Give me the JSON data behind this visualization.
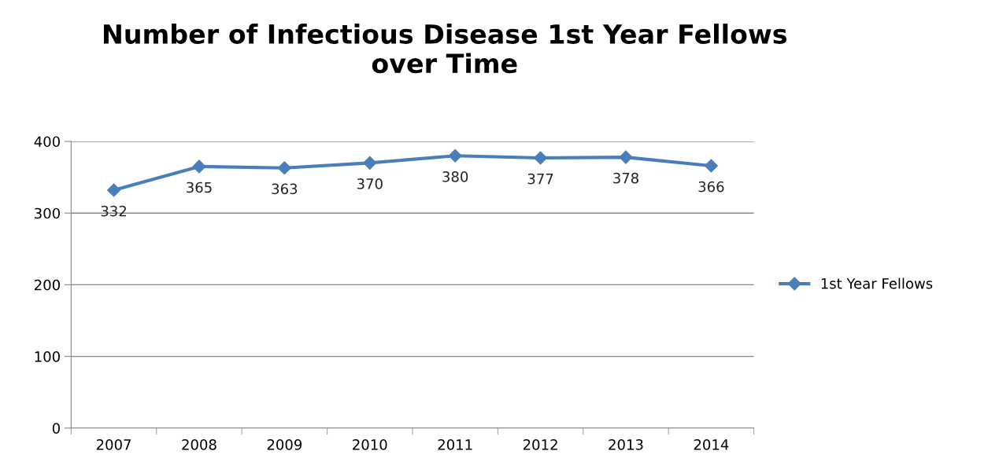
{
  "chart_data": {
    "type": "line",
    "title": "Number of Infectious Disease 1st Year Fellows\nover Time",
    "categories": [
      "2007",
      "2008",
      "2009",
      "2010",
      "2011",
      "2012",
      "2013",
      "2014"
    ],
    "series": [
      {
        "name": "1st Year Fellows",
        "color": "#4a7ebb",
        "values": [
          332,
          365,
          363,
          370,
          380,
          377,
          378,
          366
        ]
      }
    ],
    "ylim": [
      0,
      400
    ],
    "yticks": [
      0,
      100,
      200,
      300,
      400
    ],
    "grid": "y",
    "legend": "right",
    "marker": "diamond",
    "line_style": "solid",
    "data_labels": true
  }
}
